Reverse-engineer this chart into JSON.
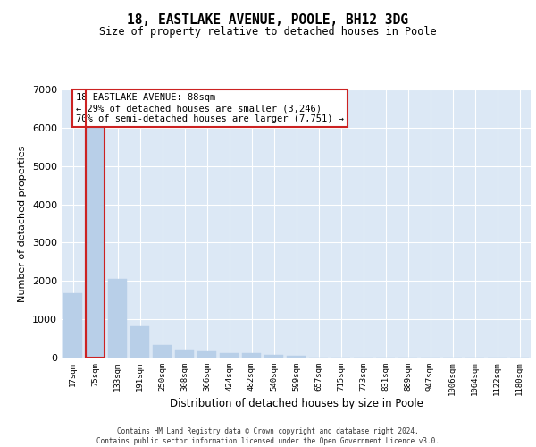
{
  "title1": "18, EASTLAKE AVENUE, POOLE, BH12 3DG",
  "title2": "Size of property relative to detached houses in Poole",
  "xlabel": "Distribution of detached houses by size in Poole",
  "ylabel": "Number of detached properties",
  "categories": [
    "17sqm",
    "75sqm",
    "133sqm",
    "191sqm",
    "250sqm",
    "308sqm",
    "366sqm",
    "424sqm",
    "482sqm",
    "540sqm",
    "599sqm",
    "657sqm",
    "715sqm",
    "773sqm",
    "831sqm",
    "889sqm",
    "947sqm",
    "1006sqm",
    "1064sqm",
    "1122sqm",
    "1180sqm"
  ],
  "values": [
    1680,
    6050,
    2050,
    820,
    330,
    210,
    160,
    115,
    110,
    80,
    55,
    0,
    0,
    0,
    0,
    0,
    0,
    0,
    0,
    0,
    0
  ],
  "bar_color": "#b8cfe8",
  "highlight_color": "#cc2222",
  "highlight_index": 1,
  "property_label": "18 EASTLAKE AVENUE: 88sqm",
  "annotation_line1": "← 29% of detached houses are smaller (3,246)",
  "annotation_line2": "70% of semi-detached houses are larger (7,751) →",
  "ylim_max": 7000,
  "yticks": [
    0,
    1000,
    2000,
    3000,
    4000,
    5000,
    6000,
    7000
  ],
  "background_color": "#dce8f5",
  "footer_line1": "Contains HM Land Registry data © Crown copyright and database right 2024.",
  "footer_line2": "Contains public sector information licensed under the Open Government Licence v3.0."
}
